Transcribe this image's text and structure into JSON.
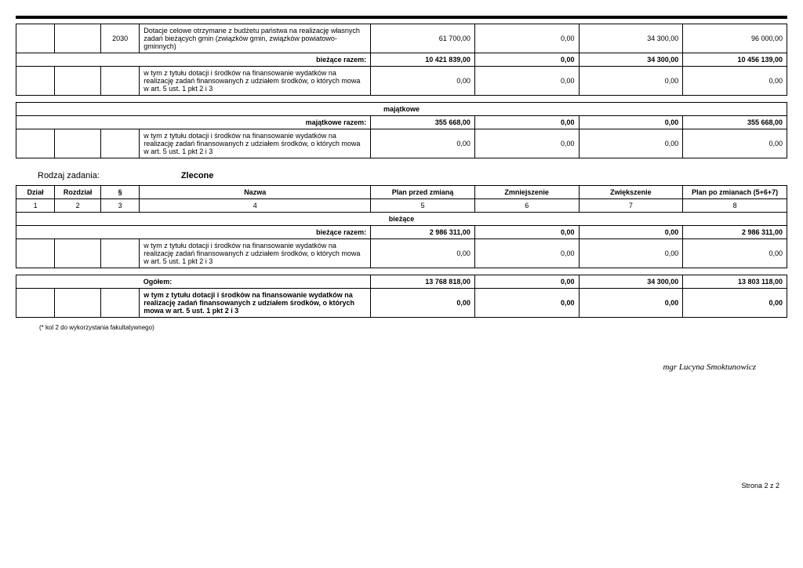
{
  "top": {
    "row1": {
      "par": "2030",
      "nazwa": "Dotacje celowe otrzymane z budżetu państwa na realizację własnych zadań bieżących gmin (związków gmin, związków powiatowo-gminnych)",
      "v1": "61 700,00",
      "v2": "0,00",
      "v3": "34 300,00",
      "v4": "96 000,00"
    },
    "sum_label": "bieżące   razem:",
    "sum": {
      "v1": "10 421 839,00",
      "v2": "0,00",
      "v3": "34 300,00",
      "v4": "10 456 139,00"
    },
    "detail_label": "w tym z tytułu dotacji i środków na finansowanie wydatków na realizację zadań finansowanych z udziałem środków, o których mowa w art. 5 ust. 1 pkt 2 i 3",
    "detail": {
      "v1": "0,00",
      "v2": "0,00",
      "v3": "0,00",
      "v4": "0,00"
    }
  },
  "majatkowe": {
    "section": "majątkowe",
    "sum_label": "majątkowe   razem:",
    "sum": {
      "v1": "355 668,00",
      "v2": "0,00",
      "v3": "0,00",
      "v4": "355 668,00"
    },
    "detail_label": "w tym z tytułu dotacji i środków na finansowanie wydatków na realizację zadań finansowanych z udziałem środków, o których mowa w art. 5 ust. 1 pkt 2 i 3",
    "detail": {
      "v1": "0,00",
      "v2": "0,00",
      "v3": "0,00",
      "v4": "0,00"
    }
  },
  "rodzaj": {
    "label": "Rodzaj zadania:",
    "value": "Zlecone"
  },
  "headers": {
    "dzial": "Dział",
    "rozdzial": "Rozdział",
    "par": "§",
    "nazwa": "Nazwa",
    "plan_przed": "Plan przed zmianą",
    "zmniejszenie": "Zmniejszenie",
    "zwiekszenie": "Zwiększenie",
    "plan_po": "Plan po zmianach (5+6+7)",
    "c1": "1",
    "c2": "2",
    "c3": "3",
    "c4": "4",
    "c5": "5",
    "c6": "6",
    "c7": "7",
    "c8": "8"
  },
  "biezace": {
    "section": "bieżące",
    "sum_label": "bieżące   razem:",
    "sum": {
      "v1": "2 986 311,00",
      "v2": "0,00",
      "v3": "0,00",
      "v4": "2 986 311,00"
    },
    "detail_label": "w tym z tytułu dotacji i środków na finansowanie wydatków na realizację zadań finansowanych z udziałem środków, o których mowa w art. 5 ust. 1 pkt 2 i 3",
    "detail": {
      "v1": "0,00",
      "v2": "0,00",
      "v3": "0,00",
      "v4": "0,00"
    }
  },
  "ogolem": {
    "label": "Ogółem:",
    "sum": {
      "v1": "13 768 818,00",
      "v2": "0,00",
      "v3": "34 300,00",
      "v4": "13 803 118,00"
    },
    "detail_label": "w tym z tytułu dotacji i środków na finansowanie wydatków na realizację zadań finansowanych z udziałem środków, o których mowa w art. 5 ust. 1 pkt 2 i 3",
    "detail": {
      "v1": "0,00",
      "v2": "0,00",
      "v3": "0,00",
      "v4": "0,00"
    }
  },
  "footnote": "(* kol 2 do wykorzystania fakultatywnego)",
  "signature": "mgr Lucyna Smoktunowicz",
  "page": "Strona 2 z 2"
}
